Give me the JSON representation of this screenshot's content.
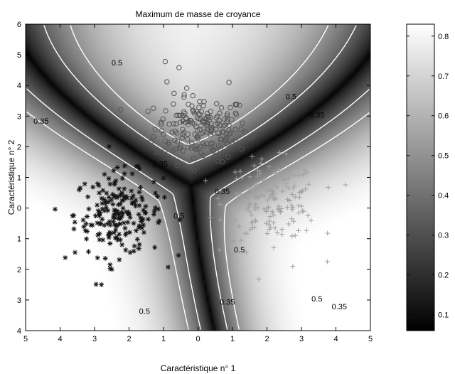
{
  "chart_data": {
    "type": "scatter",
    "title": "Maximum de masse de croyance",
    "xlabel": "Caractéristique n° 1",
    "ylabel": "Caractéristique n° 2",
    "xlim": [
      -5,
      5
    ],
    "ylim": [
      -4,
      6
    ],
    "x_ticks": [
      -5,
      -4,
      -3,
      -2,
      -1,
      0,
      1,
      2,
      3,
      4,
      5
    ],
    "x_tick_labels": [
      "5",
      "4",
      "3",
      "2",
      "1",
      "0",
      "1",
      "2",
      "3",
      "4",
      "5"
    ],
    "y_ticks": [
      -4,
      -3,
      -2,
      -1,
      0,
      1,
      2,
      3,
      4,
      5,
      6
    ],
    "y_tick_labels": [
      "4",
      "3",
      "2",
      "1",
      "0",
      "1",
      "2",
      "3",
      "4",
      "5",
      "6"
    ],
    "background": "grayscale map of maximum belief mass",
    "colorbar": {
      "ticks": [
        0.1,
        0.2,
        0.3,
        0.4,
        0.5,
        0.6,
        0.7,
        0.8
      ],
      "tick_labels": [
        "0.1",
        "0.2",
        "0.3",
        "0.4",
        "0.5",
        "0.6",
        "0.7",
        "0.8"
      ],
      "range": [
        0.06,
        0.83
      ]
    },
    "contour_levels": [
      "0.35",
      "0.5"
    ],
    "contour_labels": [
      {
        "text": "0.35",
        "x": -4.55,
        "y": 2.75
      },
      {
        "text": "0.5",
        "x": -2.35,
        "y": 4.65
      },
      {
        "text": "0.5",
        "x": 2.7,
        "y": 3.55
      },
      {
        "text": "0.35",
        "x": 3.45,
        "y": 2.95
      },
      {
        "text": "0.5",
        "x": -0.35,
        "y": 2.75
      },
      {
        "text": "0.35",
        "x": -1.1,
        "y": 1.35
      },
      {
        "text": "0.35",
        "x": 0.7,
        "y": 0.45
      },
      {
        "text": "0.5",
        "x": -0.55,
        "y": -0.35
      },
      {
        "text": "0.5",
        "x": 1.2,
        "y": -1.45
      },
      {
        "text": "0.5",
        "x": -1.55,
        "y": -3.45
      },
      {
        "text": "0.5",
        "x": 3.45,
        "y": -3.05
      },
      {
        "text": "0.35",
        "x": 0.85,
        "y": -3.15
      },
      {
        "text": "0.35",
        "x": 4.1,
        "y": -3.3
      }
    ],
    "clusters": [
      {
        "marker": "o",
        "color": "#555555",
        "center": [
          0.1,
          2.6
        ],
        "spread": [
          0.9,
          0.7
        ],
        "count": 190,
        "extra_points": [
          [
            -0.95,
            4.78
          ],
          [
            -0.55,
            4.58
          ],
          [
            -0.9,
            4.12
          ],
          [
            0.9,
            4.1
          ],
          [
            -0.4,
            3.7
          ]
        ]
      },
      {
        "marker": "*",
        "color": "#141414",
        "center": [
          -2.3,
          -0.2
        ],
        "spread": [
          0.85,
          0.9
        ],
        "count": 200,
        "extra_points": [
          [
            -3.85,
            -1.62
          ],
          [
            -2.8,
            -2.5
          ],
          [
            -2.5,
            -2.0
          ],
          [
            -2.55,
            -1.85
          ]
        ]
      },
      {
        "marker": "+",
        "color": "#a0a0a0",
        "center": [
          2.15,
          0.25
        ],
        "spread": [
          0.9,
          0.85
        ],
        "count": 170,
        "extra_points": [
          [
            3.75,
            -1.75
          ],
          [
            2.75,
            -1.9
          ],
          [
            1.4,
            -1.45
          ]
        ]
      }
    ]
  }
}
